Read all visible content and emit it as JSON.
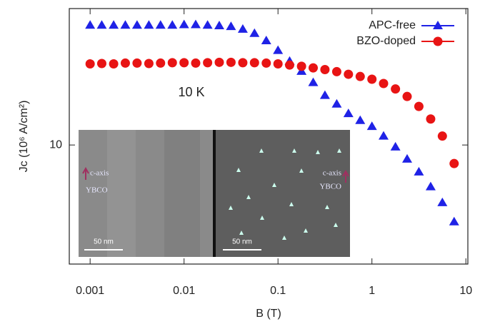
{
  "chart_data": {
    "type": "scatter",
    "xlabel": "B (T)",
    "ylabel": "Jc (10⁶ A/cm²)",
    "annotation": "10 K",
    "log_x": true,
    "log_y": true,
    "xlim": [
      0.0006,
      10.5
    ],
    "ylim": [
      2.8,
      43
    ],
    "xticks": [
      0.001,
      0.01,
      0.1,
      1,
      10
    ],
    "yticks": [
      10
    ],
    "legend": "upper right",
    "x": [
      0.001,
      0.00133,
      0.00178,
      0.00237,
      0.00316,
      0.00422,
      0.00562,
      0.0075,
      0.01,
      0.0133,
      0.0178,
      0.0237,
      0.0316,
      0.0422,
      0.0562,
      0.075,
      0.1,
      0.133,
      0.178,
      0.237,
      0.316,
      0.422,
      0.562,
      0.75,
      1,
      1.33,
      1.78,
      2.37,
      3.16,
      4.22,
      5.62,
      7.5
    ],
    "series": [
      {
        "name": "APC-free",
        "color": "#1f22e6",
        "marker": "triangle",
        "values": [
          36,
          36,
          36,
          36,
          36,
          36,
          36,
          36,
          36.2,
          36.2,
          36,
          35.8,
          35.5,
          34.5,
          33,
          30.5,
          27.5,
          24.5,
          22,
          19.5,
          17,
          15.5,
          14,
          13,
          12.2,
          11,
          9.8,
          8.6,
          7.5,
          6.4,
          5.4,
          4.4
        ]
      },
      {
        "name": "BZO-doped",
        "color": "#e81414",
        "marker": "circle",
        "values": [
          23.8,
          23.9,
          23.8,
          24,
          24,
          23.9,
          24,
          24.1,
          24.1,
          24,
          24.1,
          24.2,
          24.2,
          24.1,
          24.1,
          24,
          23.8,
          23.5,
          23.2,
          22.8,
          22.4,
          21.9,
          21.3,
          20.8,
          20.2,
          19.3,
          18.2,
          16.8,
          15.1,
          13.2,
          11,
          8.2
        ]
      }
    ],
    "inset": {
      "left_axis": "c-axis",
      "left_material": "YBCO",
      "left_scale": "50 nm",
      "right_axis": "c-axis",
      "right_material": "YBCO",
      "right_scale": "50 nm"
    }
  }
}
